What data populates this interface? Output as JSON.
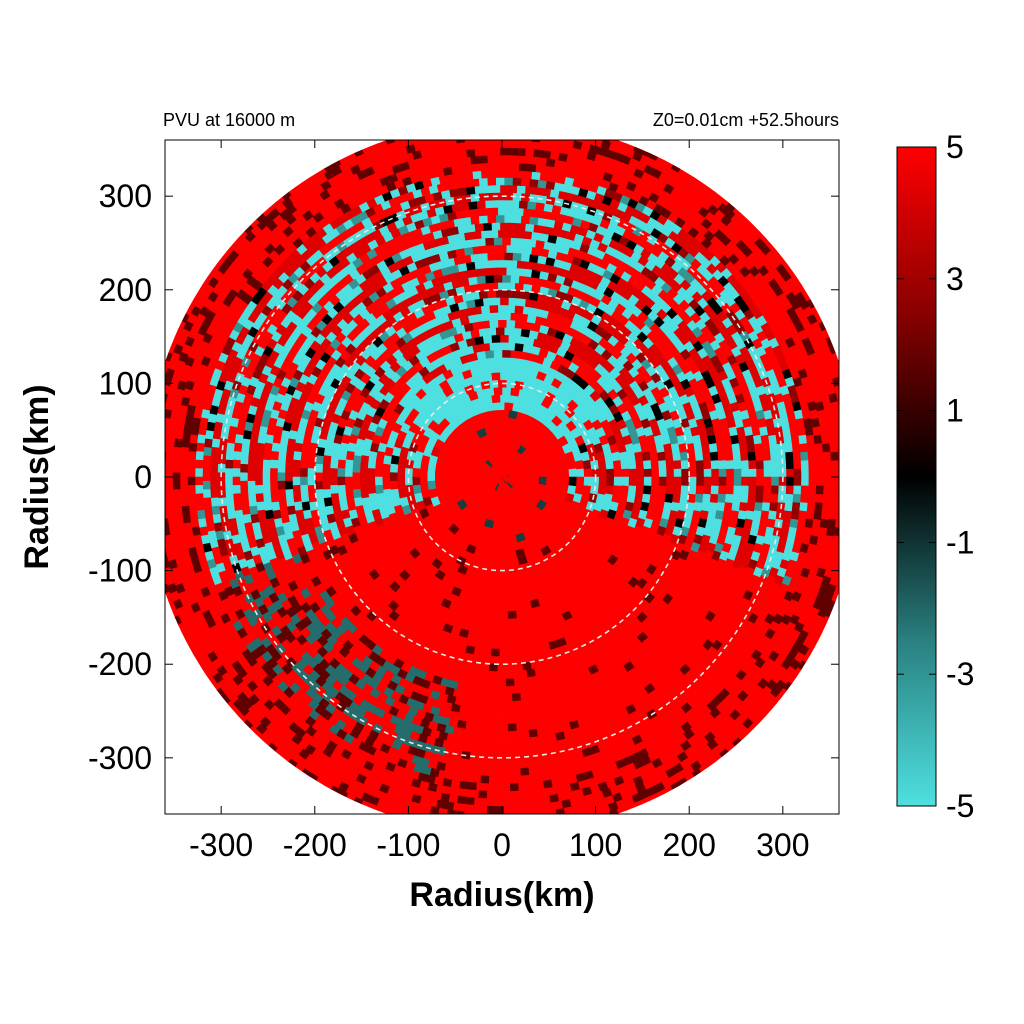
{
  "chart_data": {
    "type": "heatmap",
    "title_left": "PVU at 16000 m",
    "title_right": "Z0=0.01cm  +52.5hours",
    "xlabel": "Radius(km)",
    "ylabel": "Radius(km)",
    "xlim": [
      -360,
      360
    ],
    "ylim": [
      -360,
      360
    ],
    "x_ticks": [
      -300,
      -200,
      -100,
      0,
      100,
      200,
      300
    ],
    "y_ticks": [
      -300,
      -200,
      -100,
      0,
      100,
      200,
      300
    ],
    "domain_radius": 380,
    "reference_circles": [
      100,
      200,
      300
    ],
    "colorbar": {
      "range": [
        -5,
        5
      ],
      "ticks": [
        5,
        3,
        1,
        -1,
        -3,
        -5
      ],
      "colors": {
        "low": "#4ee0e0",
        "mid": "#000000",
        "high": "#ff0000"
      }
    },
    "field_description_regions": {
      "core_r_lt_80": 5,
      "cyan_ring_north_r_80_to_120": -5,
      "south_half": 5
    }
  }
}
